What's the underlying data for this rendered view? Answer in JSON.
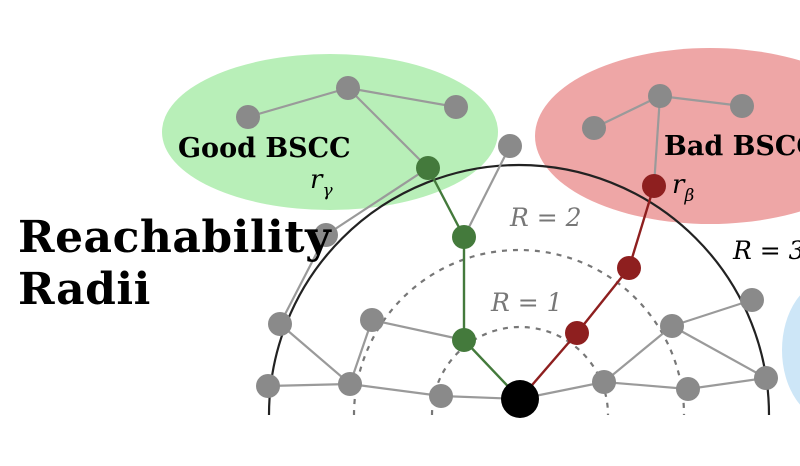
{
  "title": {
    "line1": "Reachability",
    "line2": "Radii"
  },
  "labels": {
    "good_bscc": "Good BSCC",
    "bad_bscc": "Bad BSCC",
    "r_gamma": "r",
    "r_gamma_sub": "γ",
    "r_beta": "r",
    "r_beta_sub": "β",
    "radius_1": "R = 1",
    "radius_2": "R = 2",
    "radius_3": "R = 3"
  },
  "colors": {
    "good_region": "#b8efb8",
    "bad_region": "#eea6a6",
    "side_region": "#cde6f7",
    "good_path": "#447a3c",
    "bad_path": "#8e1f1f",
    "node_gray": "#8a8a8a",
    "edge_gray": "#9a9a9a",
    "origin": "#000000",
    "dashed": "#777777",
    "outer_circle": "#222222"
  }
}
